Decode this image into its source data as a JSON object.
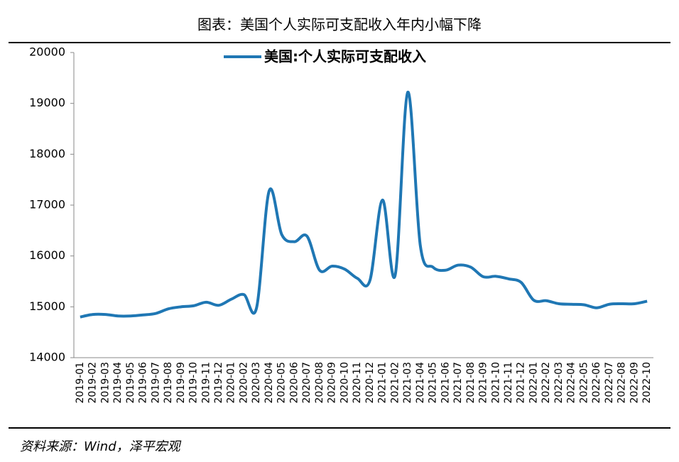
{
  "chart_data": {
    "type": "line",
    "title": "图表：美国个人实际可支配收入年内小幅下降",
    "source": "资料来源：Wind，泽平宏观",
    "categories": [
      "2019-01",
      "2019-02",
      "2019-03",
      "2019-04",
      "2019-05",
      "2019-06",
      "2019-07",
      "2019-08",
      "2019-09",
      "2019-10",
      "2019-11",
      "2019-12",
      "2020-01",
      "2020-02",
      "2020-03",
      "2020-04",
      "2020-05",
      "2020-06",
      "2020-07",
      "2020-08",
      "2020-09",
      "2020-10",
      "2020-11",
      "2020-12",
      "2021-01",
      "2021-02",
      "2021-03",
      "2021-04",
      "2021-05",
      "2021-06",
      "2021-07",
      "2021-08",
      "2021-09",
      "2021-10",
      "2021-11",
      "2021-12",
      "2022-01",
      "2022-02",
      "2022-03",
      "2022-04",
      "2022-05",
      "2022-06",
      "2022-07",
      "2022-08",
      "2022-09",
      "2022-10"
    ],
    "series": [
      {
        "name": "美国:个人实际可支配收入",
        "color": "#1f77b4",
        "values": [
          14800,
          14850,
          14850,
          14820,
          14820,
          14840,
          14870,
          14960,
          15000,
          15020,
          15090,
          15030,
          15150,
          15240,
          14980,
          17280,
          16420,
          16280,
          16390,
          15720,
          15800,
          15740,
          15560,
          15520,
          17100,
          15620,
          19220,
          16200,
          15780,
          15720,
          15820,
          15780,
          15590,
          15600,
          15550,
          15480,
          15130,
          15120,
          15060,
          15050,
          15040,
          14980,
          15050,
          15060,
          15060,
          15110
        ]
      }
    ],
    "ylim": [
      14000,
      20000
    ],
    "yticks": [
      14000,
      15000,
      16000,
      17000,
      18000,
      19000,
      20000
    ],
    "legend": "top"
  }
}
